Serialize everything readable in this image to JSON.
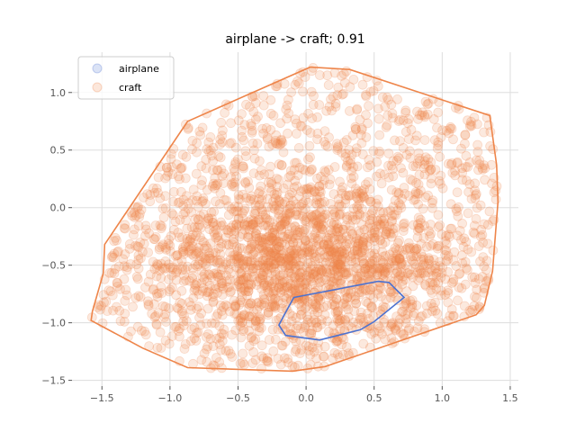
{
  "chart_data": {
    "type": "scatter",
    "title": "airplane -> craft; 0.91",
    "xlabel": "",
    "ylabel": "",
    "xlim": [
      -1.72,
      1.56
    ],
    "ylim": [
      -1.55,
      1.35
    ],
    "xticks": [
      -1.5,
      -1.0,
      -0.5,
      0.0,
      0.5,
      1.0,
      1.5
    ],
    "xtick_labels": [
      "−1.5",
      "−1.0",
      "−0.5",
      "0.0",
      "0.5",
      "1.0",
      "1.5"
    ],
    "yticks": [
      -1.5,
      -1.0,
      -0.5,
      0.0,
      0.5,
      1.0
    ],
    "ytick_labels": [
      "−1.5",
      "−1.0",
      "−0.5",
      "0.0",
      "0.5",
      "1.0"
    ],
    "grid": true,
    "legend_position": "top-left",
    "series": [
      {
        "name": "airplane",
        "color": "#4c72d0",
        "hull": [
          [
            -0.09,
            -0.78
          ],
          [
            0.53,
            -0.64
          ],
          [
            0.61,
            -0.65
          ],
          [
            0.72,
            -0.78
          ],
          [
            0.5,
            -0.99
          ],
          [
            0.4,
            -1.06
          ],
          [
            0.1,
            -1.15
          ],
          [
            -0.15,
            -1.11
          ],
          [
            -0.2,
            -1.02
          ],
          [
            -0.16,
            -0.93
          ]
        ]
      },
      {
        "name": "craft",
        "color": "#ee854a",
        "hull": [
          [
            -0.87,
            0.75
          ],
          [
            0.03,
            1.22
          ],
          [
            0.32,
            1.2
          ],
          [
            1.35,
            0.8
          ],
          [
            1.4,
            0.37
          ],
          [
            1.41,
            0.05
          ],
          [
            1.37,
            -0.55
          ],
          [
            1.31,
            -0.85
          ],
          [
            1.25,
            -0.93
          ],
          [
            0.14,
            -1.38
          ],
          [
            -0.1,
            -1.42
          ],
          [
            -0.87,
            -1.39
          ],
          [
            -1.2,
            -1.22
          ],
          [
            -1.58,
            -0.98
          ],
          [
            -1.57,
            -0.9
          ],
          [
            -1.49,
            -0.57
          ],
          [
            -1.48,
            -0.32
          ]
        ]
      }
    ]
  }
}
